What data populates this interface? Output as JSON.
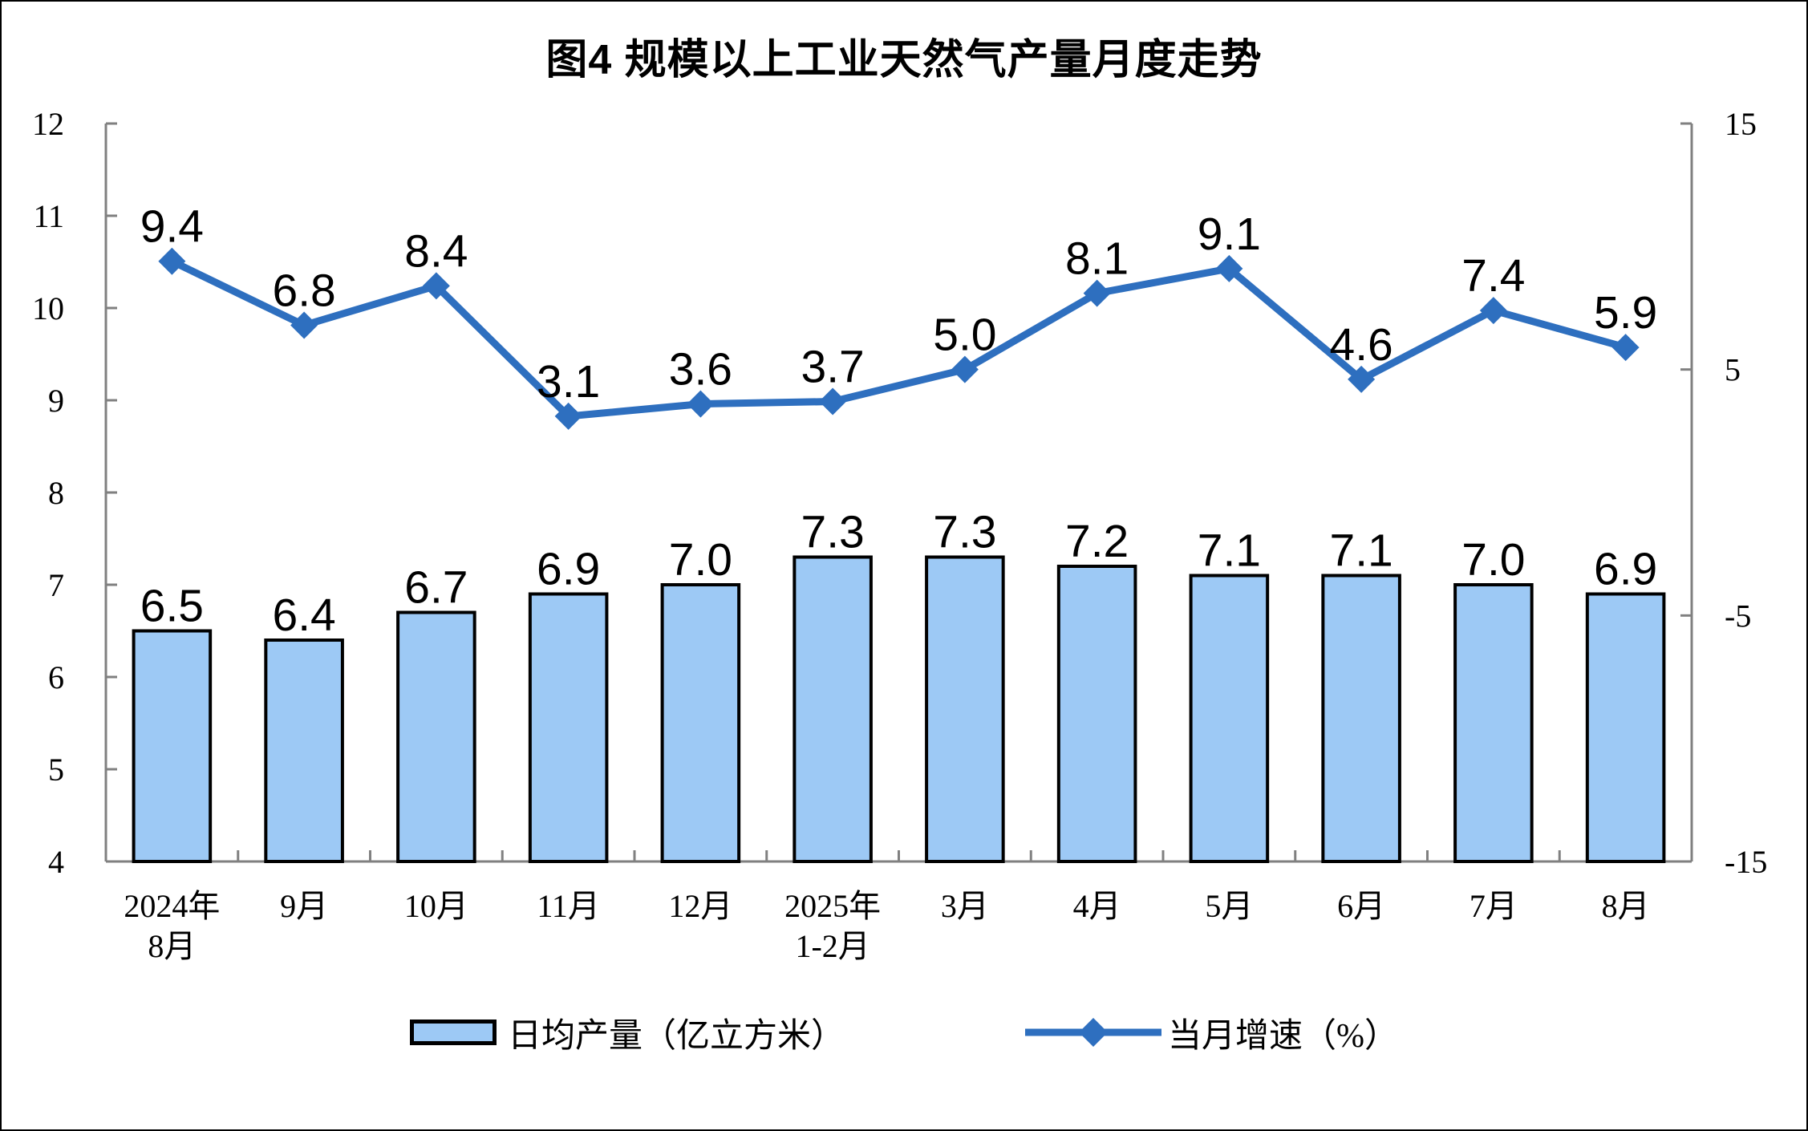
{
  "chart_data": {
    "type": "combo-bar-line",
    "title": "图4 规模以上工业天然气产量月度走势",
    "categories": [
      "2024年\n8月",
      "9月",
      "10月",
      "11月",
      "12月",
      "2025年\n1-2月",
      "3月",
      "4月",
      "5月",
      "6月",
      "7月",
      "8月"
    ],
    "series": [
      {
        "name": "日均产量（亿立方米）",
        "type": "bar",
        "axis": "left",
        "values": [
          6.5,
          6.4,
          6.7,
          6.9,
          7.0,
          7.3,
          7.3,
          7.2,
          7.1,
          7.1,
          7.0,
          6.9
        ],
        "fill_color": "#9DC9F5",
        "border_color": "#000000"
      },
      {
        "name": "当月增速（%）",
        "type": "line",
        "axis": "right",
        "values": [
          9.4,
          6.8,
          8.4,
          3.1,
          3.6,
          3.7,
          5.0,
          8.1,
          9.1,
          4.6,
          7.4,
          5.9
        ],
        "line_color": "#2E6FBF",
        "marker": "diamond"
      }
    ],
    "left_axis": {
      "min": 4,
      "max": 12,
      "ticks": [
        "12",
        "11",
        "10",
        "9",
        "8",
        "7",
        "6",
        "5",
        "4"
      ]
    },
    "right_axis": {
      "min": -15,
      "max": 15,
      "ticks": [
        "15",
        "5",
        "-5",
        "-15"
      ]
    },
    "grid": false,
    "legend_position": "bottom",
    "axis_line_color": "#808080",
    "label_decimals": 1
  }
}
